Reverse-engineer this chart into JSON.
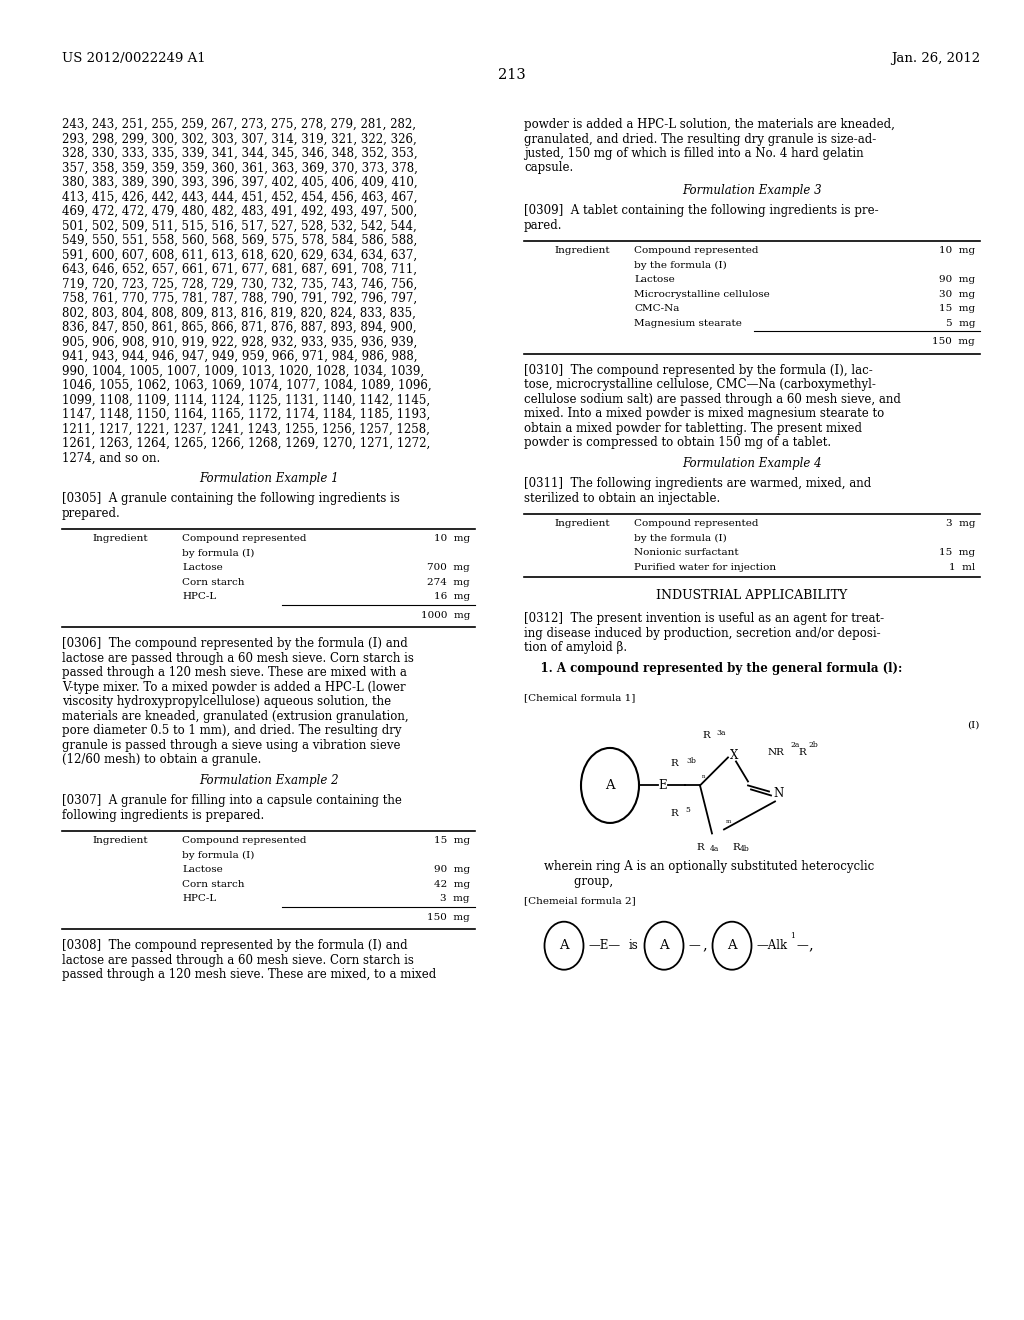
{
  "bg_color": "#ffffff",
  "header_left": "US 2012/0022249 A1",
  "header_right": "Jan. 26, 2012",
  "page_number": "213",
  "font_size_body": 8.5,
  "font_size_small": 7.5,
  "font_size_header": 9.5,
  "num_lines": [
    "243, 243, 251, 255, 259, 267, 273, 275, 278, 279, 281, 282,",
    "293, 298, 299, 300, 302, 303, 307, 314, 319, 321, 322, 326,",
    "328, 330, 333, 335, 339, 341, 344, 345, 346, 348, 352, 353,",
    "357, 358, 359, 359, 359, 360, 361, 363, 369, 370, 373, 378,",
    "380, 383, 389, 390, 393, 396, 397, 402, 405, 406, 409, 410,",
    "413, 415, 426, 442, 443, 444, 451, 452, 454, 456, 463, 467,",
    "469, 472, 472, 479, 480, 482, 483, 491, 492, 493, 497, 500,",
    "501, 502, 509, 511, 515, 516, 517, 527, 528, 532, 542, 544,",
    "549, 550, 551, 558, 560, 568, 569, 575, 578, 584, 586, 588,",
    "591, 600, 607, 608, 611, 613, 618, 620, 629, 634, 634, 637,",
    "643, 646, 652, 657, 661, 671, 677, 681, 687, 691, 708, 711,",
    "719, 720, 723, 725, 728, 729, 730, 732, 735, 743, 746, 756,",
    "758, 761, 770, 775, 781, 787, 788, 790, 791, 792, 796, 797,",
    "802, 803, 804, 808, 809, 813, 816, 819, 820, 824, 833, 835,",
    "836, 847, 850, 861, 865, 866, 871, 876, 887, 893, 894, 900,",
    "905, 906, 908, 910, 919, 922, 928, 932, 933, 935, 936, 939,",
    "941, 943, 944, 946, 947, 949, 959, 966, 971, 984, 986, 988,",
    "990, 1004, 1005, 1007, 1009, 1013, 1020, 1028, 1034, 1039,",
    "1046, 1055, 1062, 1063, 1069, 1074, 1077, 1084, 1089, 1096,",
    "1099, 1108, 1109, 1114, 1124, 1125, 1131, 1140, 1142, 1145,",
    "1147, 1148, 1150, 1164, 1165, 1172, 1174, 1184, 1185, 1193,",
    "1211, 1217, 1221, 1237, 1241, 1243, 1255, 1256, 1257, 1258,",
    "1261, 1263, 1264, 1265, 1266, 1268, 1269, 1270, 1271, 1272,",
    "1274, and so on."
  ],
  "right_top_lines": [
    "powder is added a HPC-L solution, the materials are kneaded,",
    "granulated, and dried. The resulting dry granule is size-ad-",
    "justed, 150 mg of which is filled into a No. 4 hard gelatin",
    "capsule."
  ],
  "form_ex1_title": "Formulation Example 1",
  "p0305_lines": [
    "[0305]  A granule containing the following ingredients is",
    "prepared."
  ],
  "table1_rows": [
    [
      "Ingredient",
      "Compound represented",
      "10  mg"
    ],
    [
      "",
      "by formula (I)",
      ""
    ],
    [
      "",
      "Lactose",
      "700  mg"
    ],
    [
      "",
      "Corn starch",
      "274  mg"
    ],
    [
      "",
      "HPC-L",
      "16  mg"
    ]
  ],
  "table1_total": "1000  mg",
  "p0306_lines": [
    "[0306]  The compound represented by the formula (I) and",
    "lactose are passed through a 60 mesh sieve. Corn starch is",
    "passed through a 120 mesh sieve. These are mixed with a",
    "V-type mixer. To a mixed powder is added a HPC-L (lower",
    "viscosity hydroxypropylcellulose) aqueous solution, the",
    "materials are kneaded, granulated (extrusion granulation,",
    "pore diameter 0.5 to 1 mm), and dried. The resulting dry",
    "granule is passed through a sieve using a vibration sieve",
    "(12/60 mesh) to obtain a granule."
  ],
  "form_ex2_title": "Formulation Example 2",
  "p0307_lines": [
    "[0307]  A granule for filling into a capsule containing the",
    "following ingredients is prepared."
  ],
  "table2_rows": [
    [
      "Ingredient",
      "Compound represented",
      "15  mg"
    ],
    [
      "",
      "by formula (I)",
      ""
    ],
    [
      "",
      "Lactose",
      "90  mg"
    ],
    [
      "",
      "Corn starch",
      "42  mg"
    ],
    [
      "",
      "HPC-L",
      "3  mg"
    ]
  ],
  "table2_total": "150  mg",
  "p0308_lines": [
    "[0308]  The compound represented by the formula (I) and",
    "lactose are passed through a 60 mesh sieve. Corn starch is",
    "passed through a 120 mesh sieve. These are mixed, to a mixed"
  ],
  "form_ex3_title": "Formulation Example 3",
  "p0309_lines": [
    "[0309]  A tablet containing the following ingredients is pre-",
    "pared."
  ],
  "table3_rows": [
    [
      "Ingredient",
      "Compound represented",
      "10  mg"
    ],
    [
      "",
      "by the formula (I)",
      ""
    ],
    [
      "",
      "Lactose",
      "90  mg"
    ],
    [
      "",
      "Microcrystalline cellulose",
      "30  mg"
    ],
    [
      "",
      "CMC-Na",
      "15  mg"
    ],
    [
      "",
      "Magnesium stearate",
      "5  mg"
    ]
  ],
  "table3_total": "150  mg",
  "p0310_lines": [
    "[0310]  The compound represented by the formula (I), lac-",
    "tose, microcrystalline cellulose, CMC—Na (carboxymethyl-",
    "cellulose sodium salt) are passed through a 60 mesh sieve, and",
    "mixed. Into a mixed powder is mixed magnesium stearate to",
    "obtain a mixed powder for tabletting. The present mixed",
    "powder is compressed to obtain 150 mg of a tablet."
  ],
  "form_ex4_title": "Formulation Example 4",
  "p0311_lines": [
    "[0311]  The following ingredients are warmed, mixed, and",
    "sterilized to obtain an injectable."
  ],
  "table4_rows": [
    [
      "Ingredient",
      "Compound represented",
      "3  mg"
    ],
    [
      "",
      "by the formula (I)",
      ""
    ],
    [
      "",
      "Nonionic surfactant",
      "15  mg"
    ],
    [
      "",
      "Purified water for injection",
      "1  ml"
    ]
  ],
  "industrial_title": "INDUSTRIAL APPLICABILITY",
  "p0312_lines": [
    "[0312]  The present invention is useful as an agent for treat-",
    "ing disease induced by production, secretion and/or deposi-",
    "tion of amyloid β."
  ],
  "claim1_line": "    1. A compound represented by the general formula (l):",
  "chem_formula1_label": "[Chemical formula 1]",
  "chem_formula2_label": "[Chemeial formula 2]",
  "wherein_lines": [
    "wherein ring A is an optionally substituted heterocyclic",
    "        group,"
  ],
  "roman_I": "(I)"
}
